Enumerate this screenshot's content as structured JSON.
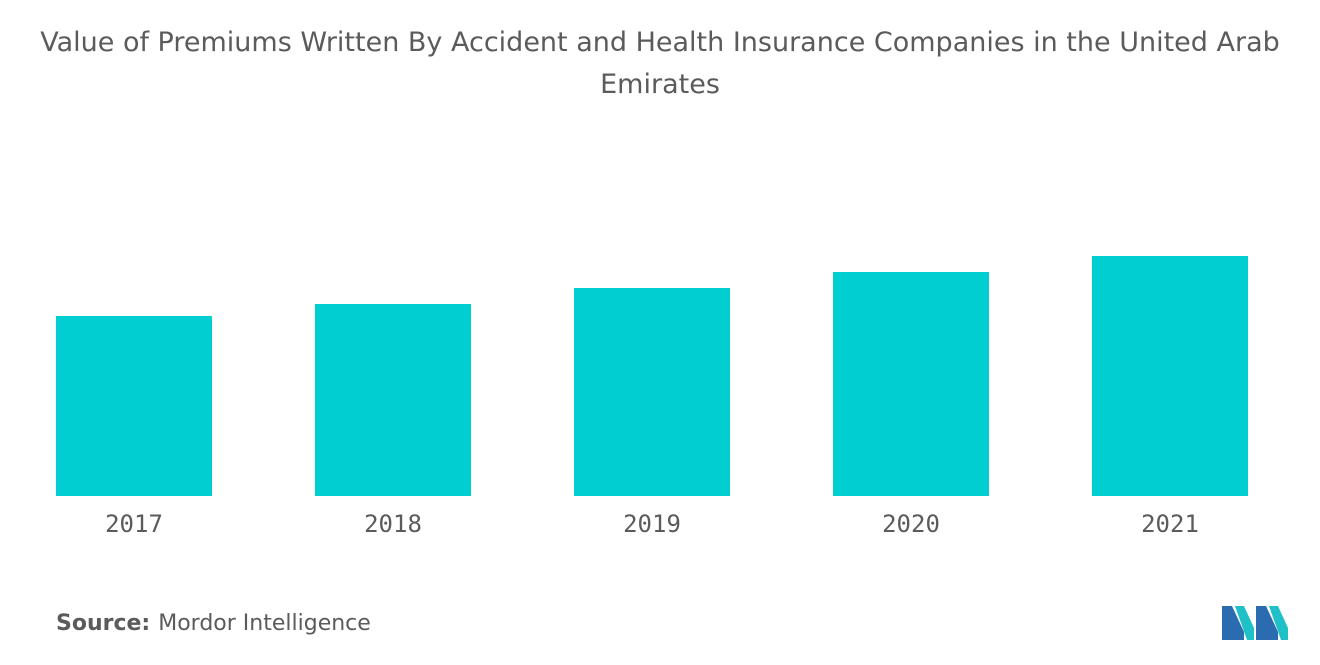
{
  "chart_data": {
    "type": "bar",
    "title": "Value of Premiums Written By Accident and Health Insurance Companies in the United Arab Emirates",
    "categories": [
      "2017",
      "2018",
      "2019",
      "2020",
      "2021"
    ],
    "values": [
      45.0,
      48.0,
      52.0,
      56.0,
      60.0
    ],
    "ylim": [
      0,
      100
    ],
    "xlabel": "",
    "ylabel": "",
    "grid": false,
    "bar_color": "#00CED1"
  },
  "footer": {
    "source_label": "Source:",
    "source_value": "Mordor Intelligence"
  },
  "logo": {
    "icon": "mordor-intelligence-logo-icon",
    "colors": [
      "#2B6CB0",
      "#1FC0C8"
    ]
  }
}
